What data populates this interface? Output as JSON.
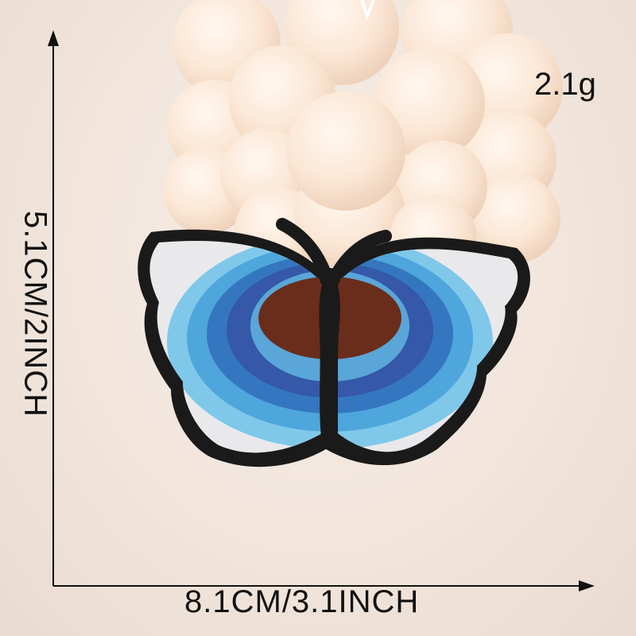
{
  "product_photo": {
    "weight": "2.1g",
    "width_dimension": "8.1CM/3.1INCH",
    "height_dimension": "5.1CM/2INCH",
    "patch_colors": {
      "outline": "#1b1a1a",
      "outer_white": "#e9e9ec",
      "light_blue": "#5ab4e0",
      "dark_blue": "#3558a8",
      "brown": "#6a2d1c",
      "candle": "#fbe6d4"
    }
  }
}
